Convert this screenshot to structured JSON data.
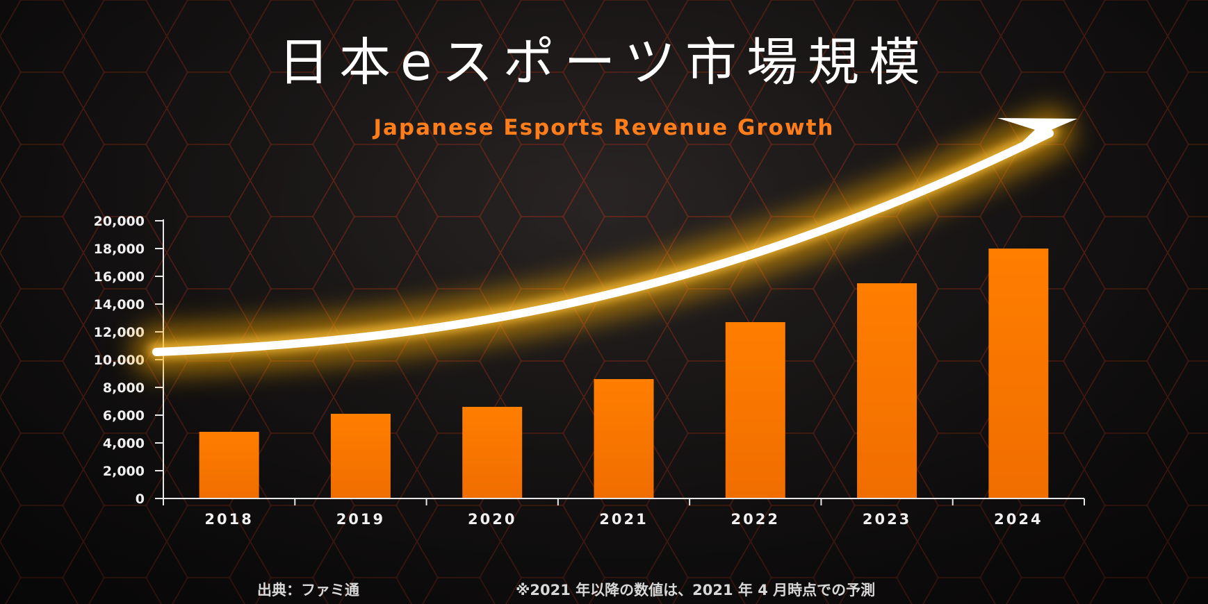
{
  "title": "日本eスポーツ市場規模",
  "subtitle": "Japanese Esports Revenue Growth",
  "footer": {
    "source": "出典：ファミ通",
    "note": "※2021 年以降の数値は、2021 年 4 月時点での予測"
  },
  "colors": {
    "bar": "#ff7a00",
    "accent": "#ff7d1a",
    "hex_line": "#7a2a1a",
    "arrow": "#ffffff",
    "glow": "#ffb000"
  },
  "chart_data": {
    "type": "bar",
    "categories": [
      "2018",
      "2019",
      "2020",
      "2021",
      "2022",
      "2023",
      "2024"
    ],
    "values": [
      4800,
      6100,
      6600,
      8600,
      12700,
      15500,
      18000
    ],
    "ylim": [
      0,
      20000
    ],
    "yticks": [
      "0",
      "2,000",
      "4,000",
      "6,000",
      "8,000",
      "10,000",
      "12,000",
      "14,000",
      "16,000",
      "18,000",
      "20,000"
    ],
    "grid": false,
    "legend": "none",
    "xlabel": "",
    "ylabel": ""
  }
}
